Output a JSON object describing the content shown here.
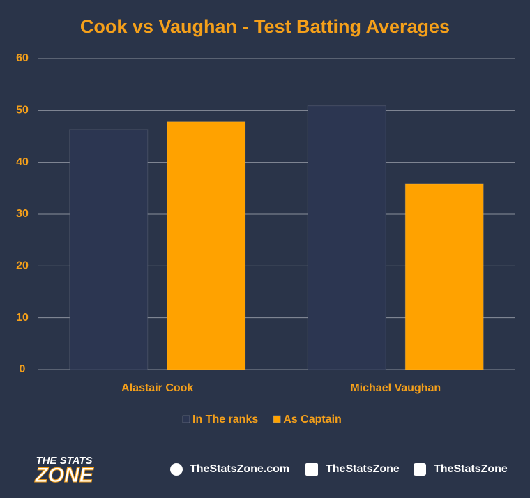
{
  "chart_data": {
    "type": "bar",
    "title": "Cook vs Vaughan - Test Batting Averages",
    "categories": [
      "Alastair Cook",
      "Michael Vaughan"
    ],
    "series": [
      {
        "name": "In The ranks",
        "color": "#2c3651",
        "values": [
          46.3,
          50.9
        ]
      },
      {
        "name": "As Captain",
        "color": "#ffa200",
        "values": [
          47.8,
          35.8
        ]
      }
    ],
    "ylim": [
      0,
      60
    ],
    "yticks": [
      0,
      10,
      20,
      30,
      40,
      50,
      60
    ],
    "grid": true,
    "legend": "bottom"
  },
  "footer": {
    "logo_top": "THE STATS",
    "logo_bottom": "ZONE",
    "website": "TheStatsZone.com",
    "facebook": "TheStatsZone",
    "twitter": "TheStatsZone"
  }
}
